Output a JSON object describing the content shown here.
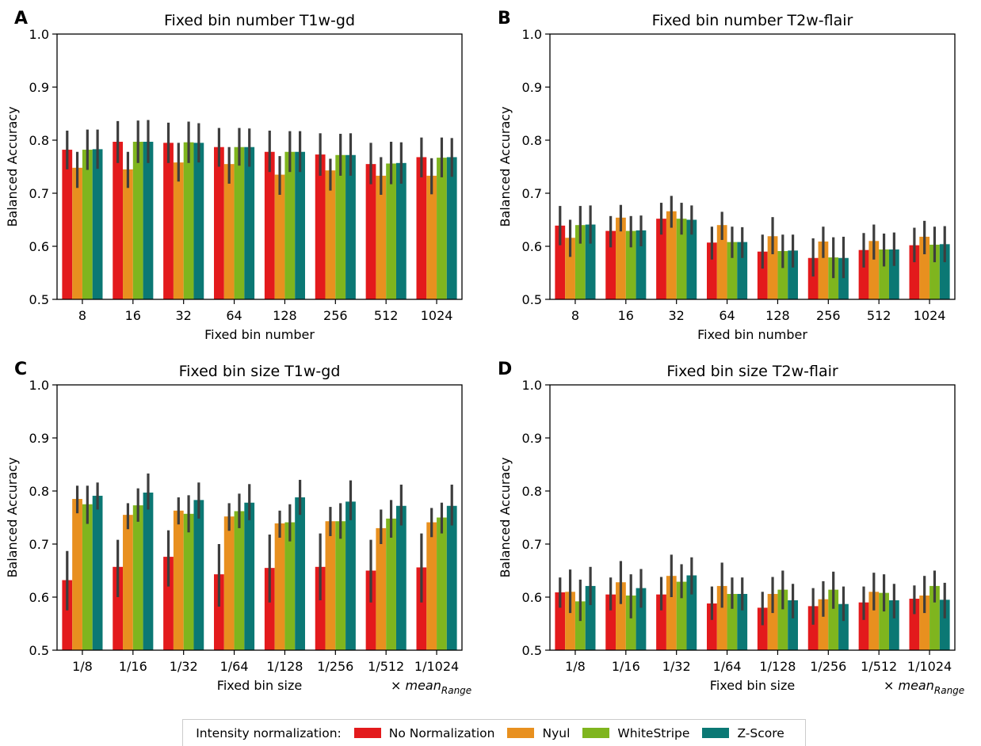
{
  "colors": {
    "No Normalization": "#e31a1c",
    "Nyul": "#e8901f",
    "WhiteStripe": "#7fb51e",
    "Z-Score": "#0b7874",
    "errorbar": "#3d3d3d"
  },
  "legend": {
    "title": "Intensity normalization:",
    "items": [
      "No Normalization",
      "Nyul",
      "WhiteStripe",
      "Z-Score"
    ]
  },
  "chart_data": [
    {
      "panel": "A",
      "type": "bar",
      "title": "Fixed bin number T1w-gd",
      "xlabel": "Fixed bin number",
      "ylabel": "Balanced Accuracy",
      "ylim": [
        0.5,
        1.0
      ],
      "yticks": [
        "0.5",
        "0.6",
        "0.7",
        "0.8",
        "0.9",
        "1.0"
      ],
      "categories": [
        "8",
        "16",
        "32",
        "64",
        "128",
        "256",
        "512",
        "1024"
      ],
      "series": [
        {
          "name": "No Normalization",
          "values": [
            0.782,
            0.797,
            0.795,
            0.787,
            0.778,
            0.773,
            0.755,
            0.768
          ],
          "ci": [
            [
              0.745,
              0.818
            ],
            [
              0.757,
              0.836
            ],
            [
              0.757,
              0.833
            ],
            [
              0.75,
              0.823
            ],
            [
              0.74,
              0.818
            ],
            [
              0.733,
              0.813
            ],
            [
              0.717,
              0.795
            ],
            [
              0.73,
              0.805
            ]
          ]
        },
        {
          "name": "Nyul",
          "values": [
            0.748,
            0.745,
            0.758,
            0.755,
            0.735,
            0.743,
            0.733,
            0.733
          ],
          "ci": [
            [
              0.71,
              0.778
            ],
            [
              0.71,
              0.778
            ],
            [
              0.722,
              0.795
            ],
            [
              0.718,
              0.787
            ],
            [
              0.697,
              0.77
            ],
            [
              0.705,
              0.765
            ],
            [
              0.697,
              0.768
            ],
            [
              0.698,
              0.766
            ]
          ]
        },
        {
          "name": "WhiteStripe",
          "values": [
            0.782,
            0.797,
            0.796,
            0.787,
            0.778,
            0.772,
            0.756,
            0.767
          ],
          "ci": [
            [
              0.744,
              0.82
            ],
            [
              0.757,
              0.837
            ],
            [
              0.757,
              0.835
            ],
            [
              0.752,
              0.823
            ],
            [
              0.74,
              0.817
            ],
            [
              0.733,
              0.812
            ],
            [
              0.717,
              0.797
            ],
            [
              0.73,
              0.805
            ]
          ]
        },
        {
          "name": "Z-Score",
          "values": [
            0.783,
            0.797,
            0.795,
            0.787,
            0.778,
            0.772,
            0.757,
            0.768
          ],
          "ci": [
            [
              0.746,
              0.82
            ],
            [
              0.757,
              0.838
            ],
            [
              0.758,
              0.832
            ],
            [
              0.75,
              0.822
            ],
            [
              0.74,
              0.817
            ],
            [
              0.733,
              0.813
            ],
            [
              0.718,
              0.796
            ],
            [
              0.731,
              0.804
            ]
          ]
        }
      ]
    },
    {
      "panel": "B",
      "type": "bar",
      "title": "Fixed bin number T2w-flair",
      "xlabel": "Fixed bin number",
      "ylabel": "Balanced Accuracy",
      "ylim": [
        0.5,
        1.0
      ],
      "yticks": [
        "0.5",
        "0.6",
        "0.7",
        "0.8",
        "0.9",
        "1.0"
      ],
      "categories": [
        "8",
        "16",
        "32",
        "64",
        "128",
        "256",
        "512",
        "1024"
      ],
      "series": [
        {
          "name": "No Normalization",
          "values": [
            0.639,
            0.629,
            0.652,
            0.607,
            0.59,
            0.578,
            0.593,
            0.602
          ],
          "ci": [
            [
              0.602,
              0.676
            ],
            [
              0.598,
              0.657
            ],
            [
              0.622,
              0.682
            ],
            [
              0.575,
              0.637
            ],
            [
              0.558,
              0.622
            ],
            [
              0.543,
              0.615
            ],
            [
              0.56,
              0.625
            ],
            [
              0.57,
              0.635
            ]
          ]
        },
        {
          "name": "Nyul",
          "values": [
            0.616,
            0.654,
            0.666,
            0.64,
            0.619,
            0.609,
            0.61,
            0.618
          ],
          "ci": [
            [
              0.58,
              0.65
            ],
            [
              0.628,
              0.678
            ],
            [
              0.635,
              0.695
            ],
            [
              0.612,
              0.665
            ],
            [
              0.585,
              0.655
            ],
            [
              0.578,
              0.637
            ],
            [
              0.575,
              0.641
            ],
            [
              0.585,
              0.648
            ]
          ]
        },
        {
          "name": "WhiteStripe",
          "values": [
            0.64,
            0.629,
            0.652,
            0.608,
            0.591,
            0.579,
            0.594,
            0.603
          ],
          "ci": [
            [
              0.605,
              0.676
            ],
            [
              0.598,
              0.657
            ],
            [
              0.622,
              0.682
            ],
            [
              0.578,
              0.637
            ],
            [
              0.559,
              0.622
            ],
            [
              0.54,
              0.617
            ],
            [
              0.562,
              0.624
            ],
            [
              0.57,
              0.637
            ]
          ]
        },
        {
          "name": "Z-Score",
          "values": [
            0.641,
            0.63,
            0.65,
            0.608,
            0.592,
            0.578,
            0.594,
            0.604
          ],
          "ci": [
            [
              0.605,
              0.677
            ],
            [
              0.6,
              0.658
            ],
            [
              0.622,
              0.677
            ],
            [
              0.578,
              0.636
            ],
            [
              0.56,
              0.622
            ],
            [
              0.54,
              0.618
            ],
            [
              0.563,
              0.626
            ],
            [
              0.57,
              0.638
            ]
          ]
        }
      ]
    },
    {
      "panel": "C",
      "type": "bar",
      "title": "Fixed bin size T1w-gd",
      "xlabel": "Fixed bin size",
      "xlabel_suffix": "× mean",
      "xlabel_suffix_sub": "Range",
      "ylabel": "Balanced Accuracy",
      "ylim": [
        0.5,
        1.0
      ],
      "yticks": [
        "0.5",
        "0.6",
        "0.7",
        "0.8",
        "0.9",
        "1.0"
      ],
      "categories": [
        "1/8",
        "1/16",
        "1/32",
        "1/64",
        "1/128",
        "1/256",
        "1/512",
        "1/1024"
      ],
      "series": [
        {
          "name": "No Normalization",
          "values": [
            0.632,
            0.657,
            0.676,
            0.643,
            0.655,
            0.657,
            0.65,
            0.656
          ],
          "ci": [
            [
              0.575,
              0.687
            ],
            [
              0.6,
              0.708
            ],
            [
              0.62,
              0.726
            ],
            [
              0.582,
              0.7
            ],
            [
              0.59,
              0.718
            ],
            [
              0.594,
              0.72
            ],
            [
              0.59,
              0.708
            ],
            [
              0.59,
              0.72
            ]
          ]
        },
        {
          "name": "Nyul",
          "values": [
            0.785,
            0.755,
            0.763,
            0.752,
            0.739,
            0.743,
            0.73,
            0.741
          ],
          "ci": [
            [
              0.758,
              0.81
            ],
            [
              0.728,
              0.777
            ],
            [
              0.737,
              0.788
            ],
            [
              0.725,
              0.777
            ],
            [
              0.712,
              0.763
            ],
            [
              0.715,
              0.77
            ],
            [
              0.7,
              0.765
            ],
            [
              0.713,
              0.768
            ]
          ]
        },
        {
          "name": "WhiteStripe",
          "values": [
            0.775,
            0.773,
            0.757,
            0.762,
            0.741,
            0.743,
            0.748,
            0.75
          ],
          "ci": [
            [
              0.738,
              0.81
            ],
            [
              0.742,
              0.805
            ],
            [
              0.722,
              0.792
            ],
            [
              0.73,
              0.795
            ],
            [
              0.705,
              0.775
            ],
            [
              0.71,
              0.777
            ],
            [
              0.712,
              0.783
            ],
            [
              0.72,
              0.778
            ]
          ]
        },
        {
          "name": "Z-Score",
          "values": [
            0.791,
            0.797,
            0.783,
            0.778,
            0.788,
            0.78,
            0.772,
            0.772
          ],
          "ci": [
            [
              0.765,
              0.816
            ],
            [
              0.765,
              0.833
            ],
            [
              0.748,
              0.816
            ],
            [
              0.745,
              0.813
            ],
            [
              0.755,
              0.821
            ],
            [
              0.745,
              0.82
            ],
            [
              0.735,
              0.812
            ],
            [
              0.735,
              0.812
            ]
          ]
        }
      ]
    },
    {
      "panel": "D",
      "type": "bar",
      "title": "Fixed bin size T2w-flair",
      "xlabel": "Fixed bin size",
      "xlabel_suffix": "× mean",
      "xlabel_suffix_sub": "Range",
      "ylabel": "Balanced Accuracy",
      "ylim": [
        0.5,
        1.0
      ],
      "yticks": [
        "0.5",
        "0.6",
        "0.7",
        "0.8",
        "0.9",
        "1.0"
      ],
      "categories": [
        "1/8",
        "1/16",
        "1/32",
        "1/64",
        "1/128",
        "1/256",
        "1/512",
        "1/1024"
      ],
      "series": [
        {
          "name": "No Normalization",
          "values": [
            0.609,
            0.605,
            0.605,
            0.588,
            0.58,
            0.583,
            0.59,
            0.597
          ],
          "ci": [
            [
              0.58,
              0.637
            ],
            [
              0.575,
              0.637
            ],
            [
              0.575,
              0.638
            ],
            [
              0.557,
              0.62
            ],
            [
              0.547,
              0.61
            ],
            [
              0.548,
              0.617
            ],
            [
              0.557,
              0.62
            ],
            [
              0.568,
              0.622
            ]
          ]
        },
        {
          "name": "Nyul",
          "values": [
            0.61,
            0.628,
            0.64,
            0.621,
            0.606,
            0.596,
            0.61,
            0.603
          ],
          "ci": [
            [
              0.57,
              0.652
            ],
            [
              0.587,
              0.668
            ],
            [
              0.6,
              0.68
            ],
            [
              0.58,
              0.665
            ],
            [
              0.57,
              0.638
            ],
            [
              0.563,
              0.63
            ],
            [
              0.575,
              0.646
            ],
            [
              0.57,
              0.64
            ]
          ]
        },
        {
          "name": "WhiteStripe",
          "values": [
            0.592,
            0.603,
            0.629,
            0.606,
            0.614,
            0.614,
            0.608,
            0.621
          ],
          "ci": [
            [
              0.555,
              0.633
            ],
            [
              0.56,
              0.643
            ],
            [
              0.598,
              0.662
            ],
            [
              0.578,
              0.637
            ],
            [
              0.577,
              0.65
            ],
            [
              0.578,
              0.648
            ],
            [
              0.573,
              0.643
            ],
            [
              0.59,
              0.65
            ]
          ]
        },
        {
          "name": "Z-Score",
          "values": [
            0.621,
            0.617,
            0.641,
            0.606,
            0.594,
            0.587,
            0.594,
            0.595
          ],
          "ci": [
            [
              0.585,
              0.657
            ],
            [
              0.58,
              0.653
            ],
            [
              0.605,
              0.675
            ],
            [
              0.575,
              0.637
            ],
            [
              0.56,
              0.625
            ],
            [
              0.555,
              0.62
            ],
            [
              0.56,
              0.625
            ],
            [
              0.56,
              0.627
            ]
          ]
        }
      ]
    }
  ]
}
